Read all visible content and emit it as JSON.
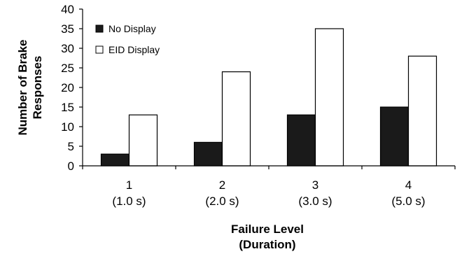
{
  "chart_data": {
    "type": "bar",
    "categories": [
      "1",
      "2",
      "3",
      "4"
    ],
    "category_sublabels": [
      "(1.0 s)",
      "(2.0 s)",
      "(3.0 s)",
      "(5.0 s)"
    ],
    "series": [
      {
        "name": "No Display",
        "values": [
          3,
          6,
          13,
          15
        ],
        "color": "#1a1a1a"
      },
      {
        "name": "EID Display",
        "values": [
          13,
          24,
          35,
          28
        ],
        "color": "#ffffff"
      }
    ],
    "xlabel": [
      "Failure Level",
      "(Duration)"
    ],
    "ylabel": [
      "Number of Brake",
      "Responses"
    ],
    "ylim": [
      0,
      40
    ],
    "yticks": [
      0,
      5,
      10,
      15,
      20,
      25,
      30,
      35,
      40
    ],
    "grid": false,
    "legend_position": "top-left"
  }
}
